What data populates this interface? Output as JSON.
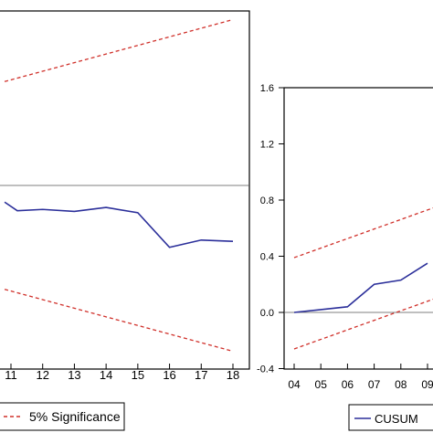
{
  "chart_data": [
    {
      "type": "line",
      "title": "",
      "xlabel": "",
      "ylabel": "",
      "x_visible": [
        "11",
        "12",
        "13",
        "14",
        "15",
        "16",
        "17",
        "18"
      ],
      "y_range": [
        -2.6,
        2.6
      ],
      "reference_line": 0,
      "series": [
        {
          "values": [
            {
              "x": 10.8,
              "y": -0.25
            },
            {
              "x": 11.2,
              "y": -0.38
            },
            {
              "x": 12,
              "y": -0.36
            },
            {
              "x": 13,
              "y": -0.39
            },
            {
              "x": 14,
              "y": -0.33
            },
            {
              "x": 15,
              "y": -0.41
            },
            {
              "x": 16,
              "y": -0.93
            },
            {
              "x": 17,
              "y": -0.82
            },
            {
              "x": 18,
              "y": -0.84
            }
          ]
        },
        {
          "name": "5% Significance",
          "dashed": true,
          "values": [
            {
              "x": 10.8,
              "y": 1.56
            },
            {
              "x": 18,
              "y": 2.49
            }
          ]
        },
        {
          "name": "5% Significance",
          "dashed": true,
          "values": [
            {
              "x": 10.8,
              "y": -1.56
            },
            {
              "x": 18,
              "y": -2.49
            }
          ]
        }
      ],
      "legend": [
        {
          "label": "5% Significance",
          "style": "dashed",
          "color": "#d0302a"
        }
      ]
    },
    {
      "type": "line",
      "title": "",
      "xlabel": "",
      "ylabel": "",
      "x_ticks": [
        "04",
        "05",
        "06",
        "07",
        "08",
        "09"
      ],
      "y_ticks": [
        "1.6",
        "1.2",
        "0.8",
        "0.4",
        "0.0",
        "-0.4"
      ],
      "y_range": [
        -0.4,
        1.6
      ],
      "reference_line": 0,
      "series": [
        {
          "name": "CUSUM",
          "values": [
            {
              "x": 4,
              "y": 0.0
            },
            {
              "x": 5,
              "y": 0.02
            },
            {
              "x": 6,
              "y": 0.04
            },
            {
              "x": 7,
              "y": 0.2
            },
            {
              "x": 8,
              "y": 0.23
            },
            {
              "x": 9,
              "y": 0.35
            }
          ]
        },
        {
          "name": "5% Significance",
          "dashed": true,
          "values": [
            {
              "x": 4,
              "y": 0.39
            },
            {
              "x": 9.3,
              "y": 0.75
            }
          ]
        },
        {
          "name": "5% Significance",
          "dashed": true,
          "values": [
            {
              "x": 4,
              "y": -0.26
            },
            {
              "x": 9.3,
              "y": 0.1
            }
          ]
        }
      ],
      "legend": [
        {
          "label": "CUSUM",
          "style": "solid",
          "color": "#2b2f9a"
        }
      ]
    }
  ],
  "colors": {
    "cusum": "#2b2f9a",
    "significance": "#d0302a",
    "axis": "#000000",
    "zero_line": "#555555"
  }
}
